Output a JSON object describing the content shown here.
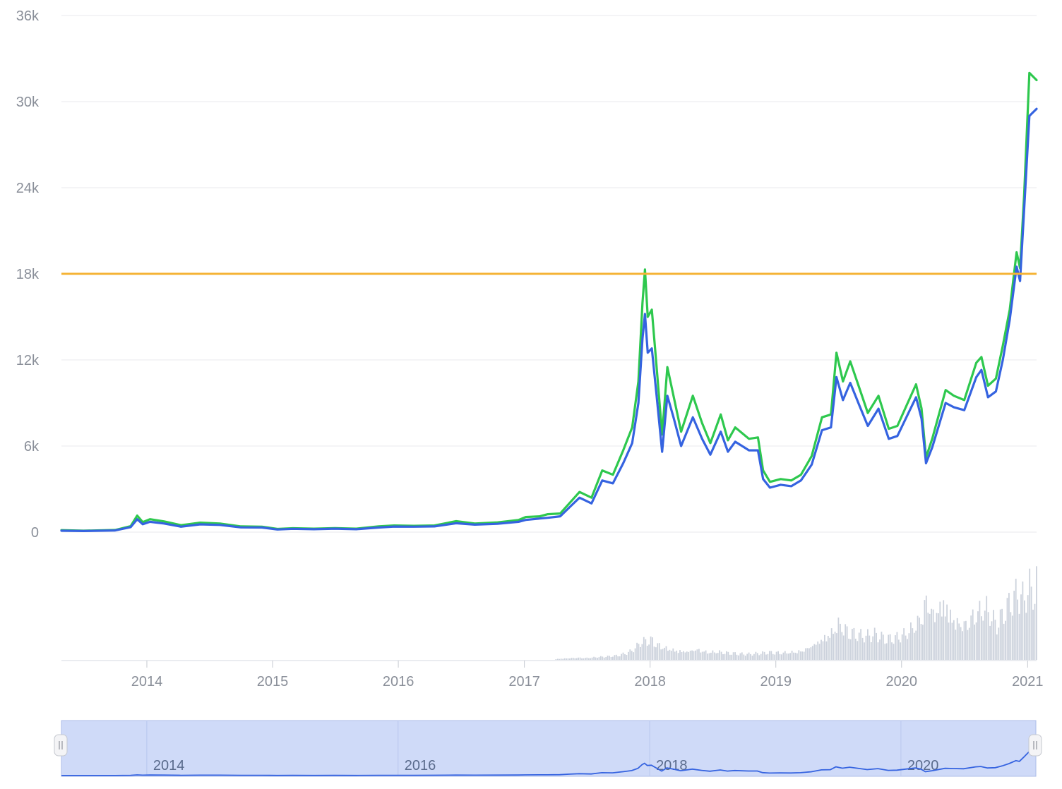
{
  "chart_data": {
    "type": "line",
    "y_ticks": [
      "0",
      "6k",
      "12k",
      "18k",
      "24k",
      "30k",
      "36k"
    ],
    "y_tick_values": [
      0,
      6000,
      12000,
      18000,
      24000,
      30000,
      36000
    ],
    "ylim": [
      0,
      36000
    ],
    "x_ticks": [
      "2014",
      "2015",
      "2016",
      "2017",
      "2018",
      "2019",
      "2020",
      "2021"
    ],
    "xlim": [
      "2013-04-28",
      "2021-01-27"
    ],
    "grid": "horizontal",
    "threshold_line": {
      "value": 18000,
      "color": "#f5b335"
    },
    "series": [
      {
        "color": "#2ec84e",
        "points": [
          [
            "2013-04-28",
            140
          ],
          [
            "2013-07-01",
            100
          ],
          [
            "2013-10-01",
            150
          ],
          [
            "2013-11-15",
            420
          ],
          [
            "2013-12-04",
            1150
          ],
          [
            "2013-12-20",
            700
          ],
          [
            "2014-01-10",
            900
          ],
          [
            "2014-02-20",
            750
          ],
          [
            "2014-04-10",
            480
          ],
          [
            "2014-06-05",
            660
          ],
          [
            "2014-08-01",
            600
          ],
          [
            "2014-10-01",
            400
          ],
          [
            "2014-12-01",
            380
          ],
          [
            "2015-01-15",
            220
          ],
          [
            "2015-03-01",
            270
          ],
          [
            "2015-05-01",
            240
          ],
          [
            "2015-07-01",
            280
          ],
          [
            "2015-09-01",
            240
          ],
          [
            "2015-11-05",
            400
          ],
          [
            "2015-12-20",
            460
          ],
          [
            "2016-02-15",
            440
          ],
          [
            "2016-04-15",
            460
          ],
          [
            "2016-06-17",
            760
          ],
          [
            "2016-08-10",
            600
          ],
          [
            "2016-10-15",
            680
          ],
          [
            "2016-12-15",
            840
          ],
          [
            "2017-01-05",
            1050
          ],
          [
            "2017-02-15",
            1100
          ],
          [
            "2017-03-10",
            1250
          ],
          [
            "2017-04-15",
            1300
          ],
          [
            "2017-05-15",
            2100
          ],
          [
            "2017-06-10",
            2800
          ],
          [
            "2017-07-15",
            2400
          ],
          [
            "2017-08-15",
            4300
          ],
          [
            "2017-09-15",
            4000
          ],
          [
            "2017-10-15",
            5700
          ],
          [
            "2017-11-10",
            7300
          ],
          [
            "2017-11-28",
            10500
          ],
          [
            "2017-12-10",
            16000
          ],
          [
            "2017-12-17",
            18300
          ],
          [
            "2017-12-25",
            15000
          ],
          [
            "2018-01-06",
            15500
          ],
          [
            "2018-01-20",
            11500
          ],
          [
            "2018-02-05",
            6800
          ],
          [
            "2018-02-20",
            11500
          ],
          [
            "2018-03-10",
            9500
          ],
          [
            "2018-04-01",
            7000
          ],
          [
            "2018-05-05",
            9500
          ],
          [
            "2018-06-01",
            7600
          ],
          [
            "2018-06-25",
            6200
          ],
          [
            "2018-07-25",
            8200
          ],
          [
            "2018-08-15",
            6400
          ],
          [
            "2018-09-05",
            7300
          ],
          [
            "2018-10-15",
            6500
          ],
          [
            "2018-11-10",
            6600
          ],
          [
            "2018-11-25",
            4300
          ],
          [
            "2018-12-15",
            3500
          ],
          [
            "2019-01-15",
            3700
          ],
          [
            "2019-02-15",
            3600
          ],
          [
            "2019-03-15",
            4000
          ],
          [
            "2019-04-15",
            5300
          ],
          [
            "2019-05-15",
            8000
          ],
          [
            "2019-06-10",
            8200
          ],
          [
            "2019-06-26",
            12500
          ],
          [
            "2019-07-15",
            10500
          ],
          [
            "2019-08-05",
            11900
          ],
          [
            "2019-09-01",
            10000
          ],
          [
            "2019-09-25",
            8300
          ],
          [
            "2019-10-26",
            9500
          ],
          [
            "2019-11-25",
            7200
          ],
          [
            "2019-12-20",
            7400
          ],
          [
            "2020-01-15",
            8800
          ],
          [
            "2020-02-12",
            10300
          ],
          [
            "2020-02-28",
            8600
          ],
          [
            "2020-03-12",
            5200
          ],
          [
            "2020-03-30",
            6500
          ],
          [
            "2020-05-08",
            9900
          ],
          [
            "2020-06-01",
            9500
          ],
          [
            "2020-07-01",
            9200
          ],
          [
            "2020-08-05",
            11800
          ],
          [
            "2020-08-20",
            12200
          ],
          [
            "2020-09-08",
            10200
          ],
          [
            "2020-10-01",
            10700
          ],
          [
            "2020-10-21",
            13000
          ],
          [
            "2020-11-10",
            15500
          ],
          [
            "2020-11-30",
            19500
          ],
          [
            "2020-12-10",
            18400
          ],
          [
            "2020-12-22",
            23500
          ],
          [
            "2021-01-06",
            32000
          ],
          [
            "2021-01-27",
            31500
          ]
        ]
      },
      {
        "color": "#3563e0",
        "points": [
          [
            "2013-04-28",
            100
          ],
          [
            "2013-07-01",
            80
          ],
          [
            "2013-10-01",
            120
          ],
          [
            "2013-11-15",
            350
          ],
          [
            "2013-12-04",
            900
          ],
          [
            "2013-12-20",
            550
          ],
          [
            "2014-01-10",
            720
          ],
          [
            "2014-02-20",
            600
          ],
          [
            "2014-04-10",
            380
          ],
          [
            "2014-06-05",
            540
          ],
          [
            "2014-08-01",
            500
          ],
          [
            "2014-10-01",
            330
          ],
          [
            "2014-12-01",
            320
          ],
          [
            "2015-01-15",
            180
          ],
          [
            "2015-03-01",
            230
          ],
          [
            "2015-05-01",
            200
          ],
          [
            "2015-07-01",
            240
          ],
          [
            "2015-09-01",
            200
          ],
          [
            "2015-11-05",
            320
          ],
          [
            "2015-12-20",
            390
          ],
          [
            "2016-02-15",
            380
          ],
          [
            "2016-04-15",
            400
          ],
          [
            "2016-06-17",
            620
          ],
          [
            "2016-08-10",
            520
          ],
          [
            "2016-10-15",
            580
          ],
          [
            "2016-12-15",
            720
          ],
          [
            "2017-01-05",
            850
          ],
          [
            "2017-02-15",
            950
          ],
          [
            "2017-03-10",
            1000
          ],
          [
            "2017-04-15",
            1100
          ],
          [
            "2017-05-15",
            1800
          ],
          [
            "2017-06-10",
            2400
          ],
          [
            "2017-07-15",
            2000
          ],
          [
            "2017-08-15",
            3600
          ],
          [
            "2017-09-15",
            3400
          ],
          [
            "2017-10-15",
            4800
          ],
          [
            "2017-11-10",
            6200
          ],
          [
            "2017-11-28",
            9000
          ],
          [
            "2017-12-10",
            13500
          ],
          [
            "2017-12-17",
            15200
          ],
          [
            "2017-12-25",
            12500
          ],
          [
            "2018-01-06",
            12800
          ],
          [
            "2018-01-20",
            9500
          ],
          [
            "2018-02-05",
            5600
          ],
          [
            "2018-02-20",
            9500
          ],
          [
            "2018-03-10",
            8000
          ],
          [
            "2018-04-01",
            6000
          ],
          [
            "2018-05-05",
            8000
          ],
          [
            "2018-06-01",
            6500
          ],
          [
            "2018-06-25",
            5400
          ],
          [
            "2018-07-25",
            7000
          ],
          [
            "2018-08-15",
            5600
          ],
          [
            "2018-09-05",
            6300
          ],
          [
            "2018-10-15",
            5700
          ],
          [
            "2018-11-10",
            5700
          ],
          [
            "2018-11-25",
            3700
          ],
          [
            "2018-12-15",
            3100
          ],
          [
            "2019-01-15",
            3300
          ],
          [
            "2019-02-15",
            3200
          ],
          [
            "2019-03-15",
            3600
          ],
          [
            "2019-04-15",
            4700
          ],
          [
            "2019-05-15",
            7100
          ],
          [
            "2019-06-10",
            7300
          ],
          [
            "2019-06-26",
            10800
          ],
          [
            "2019-07-15",
            9200
          ],
          [
            "2019-08-05",
            10400
          ],
          [
            "2019-09-01",
            8800
          ],
          [
            "2019-09-25",
            7400
          ],
          [
            "2019-10-26",
            8600
          ],
          [
            "2019-11-25",
            6500
          ],
          [
            "2019-12-20",
            6700
          ],
          [
            "2020-01-15",
            8000
          ],
          [
            "2020-02-12",
            9400
          ],
          [
            "2020-02-28",
            7900
          ],
          [
            "2020-03-12",
            4800
          ],
          [
            "2020-03-30",
            5900
          ],
          [
            "2020-05-08",
            9000
          ],
          [
            "2020-06-01",
            8700
          ],
          [
            "2020-07-01",
            8500
          ],
          [
            "2020-08-05",
            10800
          ],
          [
            "2020-08-20",
            11300
          ],
          [
            "2020-09-08",
            9400
          ],
          [
            "2020-10-01",
            9800
          ],
          [
            "2020-10-21",
            12000
          ],
          [
            "2020-11-10",
            14800
          ],
          [
            "2020-11-30",
            18500
          ],
          [
            "2020-12-10",
            17500
          ],
          [
            "2020-12-22",
            22500
          ],
          [
            "2021-01-06",
            29000
          ],
          [
            "2021-01-27",
            29500
          ]
        ]
      }
    ],
    "volume": {
      "color": "#ccd2dc",
      "points": [
        [
          "2017-04-01",
          6
        ],
        [
          "2017-05-01",
          10
        ],
        [
          "2017-06-01",
          14
        ],
        [
          "2017-07-01",
          12
        ],
        [
          "2017-08-01",
          18
        ],
        [
          "2017-09-01",
          22
        ],
        [
          "2017-10-01",
          28
        ],
        [
          "2017-11-01",
          50
        ],
        [
          "2017-11-20",
          80
        ],
        [
          "2017-12-01",
          110
        ],
        [
          "2017-12-15",
          120
        ],
        [
          "2018-01-05",
          130
        ],
        [
          "2018-01-20",
          100
        ],
        [
          "2018-02-10",
          80
        ],
        [
          "2018-03-10",
          65
        ],
        [
          "2018-04-15",
          55
        ],
        [
          "2018-05-15",
          70
        ],
        [
          "2018-06-15",
          50
        ],
        [
          "2018-07-15",
          52
        ],
        [
          "2018-08-15",
          44
        ],
        [
          "2018-09-15",
          38
        ],
        [
          "2018-10-15",
          36
        ],
        [
          "2018-11-15",
          42
        ],
        [
          "2018-12-15",
          48
        ],
        [
          "2019-01-15",
          45
        ],
        [
          "2019-02-15",
          50
        ],
        [
          "2019-03-15",
          58
        ],
        [
          "2019-04-15",
          95
        ],
        [
          "2019-05-15",
          140
        ],
        [
          "2019-06-15",
          190
        ],
        [
          "2019-07-01",
          240
        ],
        [
          "2019-07-20",
          200
        ],
        [
          "2019-08-15",
          170
        ],
        [
          "2019-09-15",
          150
        ],
        [
          "2019-10-15",
          160
        ],
        [
          "2019-11-15",
          130
        ],
        [
          "2019-12-15",
          140
        ],
        [
          "2020-01-15",
          170
        ],
        [
          "2020-02-15",
          240
        ],
        [
          "2020-03-01",
          310
        ],
        [
          "2020-03-12",
          400
        ],
        [
          "2020-04-01",
          300
        ],
        [
          "2020-05-01",
          390
        ],
        [
          "2020-06-01",
          260
        ],
        [
          "2020-07-01",
          230
        ],
        [
          "2020-08-01",
          300
        ],
        [
          "2020-09-01",
          330
        ],
        [
          "2020-10-01",
          220
        ],
        [
          "2020-11-01",
          330
        ],
        [
          "2020-12-01",
          420
        ],
        [
          "2020-12-20",
          380
        ],
        [
          "2021-01-05",
          460
        ],
        [
          "2021-01-20",
          420
        ],
        [
          "2021-01-27",
          520
        ]
      ]
    },
    "navigator": {
      "x_ticks": [
        "2014",
        "2016",
        "2018",
        "2020"
      ]
    }
  }
}
